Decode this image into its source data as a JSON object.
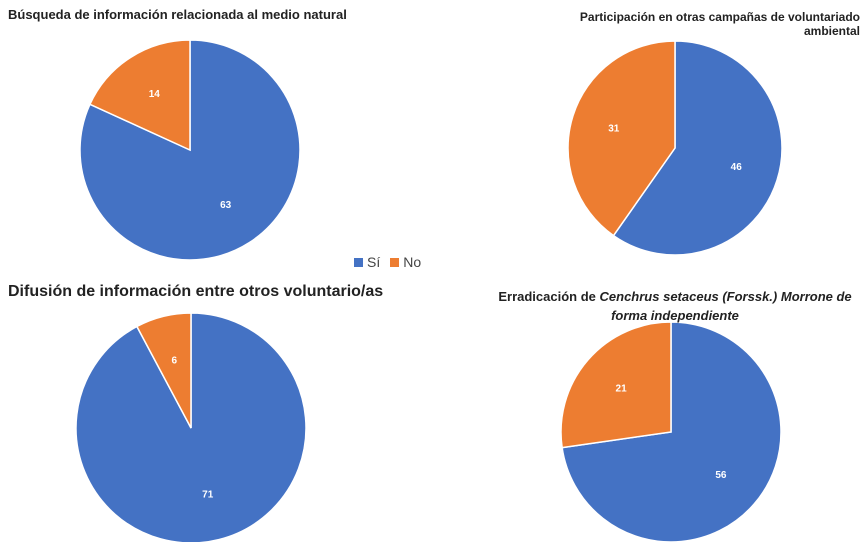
{
  "legend": {
    "items": [
      {
        "name": "Sí",
        "color": "#4472c4"
      },
      {
        "name": "No",
        "color": "#ed7d31"
      }
    ]
  },
  "chart_data": [
    {
      "type": "pie",
      "title": "Búsqueda de información relacionada al medio natural",
      "values": [
        63,
        14
      ]
    },
    {
      "type": "pie",
      "title": "Participación en otras campañas de voluntariado ambiental",
      "values": [
        46,
        31
      ]
    },
    {
      "type": "pie",
      "title": "Difusión de información entre otros voluntario/as",
      "values": [
        71,
        6
      ]
    },
    {
      "type": "pie",
      "title": "Erradicación de",
      "title_italic": "Cenchrus setaceus (Forssk.) Morrone de forma independiente",
      "values": [
        56,
        21
      ]
    }
  ]
}
